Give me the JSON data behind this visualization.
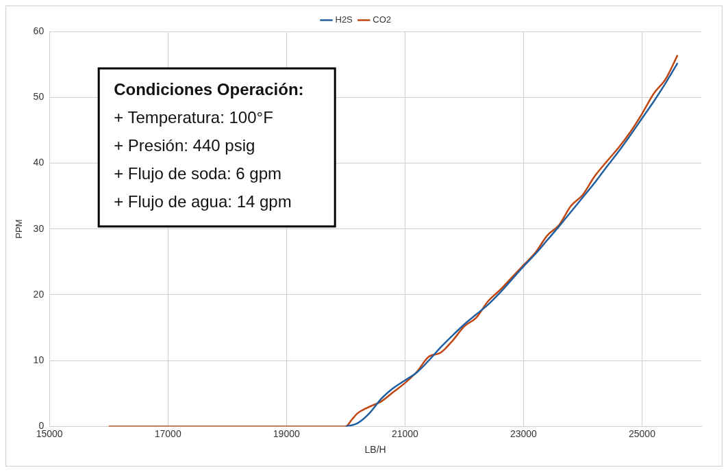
{
  "chart_data": {
    "type": "line",
    "xlabel": "LB/H",
    "ylabel": "PPM",
    "xlim": [
      15000,
      26000
    ],
    "xticks": [
      15000,
      17000,
      19000,
      21000,
      23000,
      25000
    ],
    "ylim": [
      0,
      60
    ],
    "yticks": [
      0,
      10,
      20,
      30,
      40,
      50,
      60
    ],
    "grid": true,
    "legend": "top",
    "marker": "none",
    "line_style": "solid",
    "annotations": [
      "Condiciones Operación:",
      "+ Temperatura: 100°F",
      "+ Presión: 440 psig",
      "+ Flujo de soda: 6 gpm",
      "+ Flujo de agua: 14 gpm"
    ],
    "series": [
      {
        "name": "H2S",
        "color": "#1f5f9f",
        "x": [
          20000,
          20200,
          20400,
          20600,
          20800,
          21000,
          21200,
          21400,
          21600,
          21800,
          22000,
          22200,
          22400,
          22600,
          22800,
          23000,
          23200,
          23400,
          23600,
          23800,
          24000,
          24200,
          24400,
          24600,
          24800,
          25000,
          25200,
          25400,
          25600
        ],
        "values": [
          0,
          0.5,
          2,
          4.2,
          5.8,
          7,
          8.2,
          10,
          12,
          13.8,
          15.5,
          17,
          18.5,
          20.3,
          22.3,
          24.3,
          26.2,
          28.3,
          30.4,
          32.6,
          34.8,
          37,
          39.4,
          41.7,
          44.2,
          46.8,
          49.4,
          52.2,
          55.2
        ]
      },
      {
        "name": "CO2",
        "color": "#c0450f",
        "x": [
          16000,
          20000,
          20100,
          20200,
          20400,
          20600,
          20800,
          21000,
          21200,
          21400,
          21600,
          21800,
          22000,
          22200,
          22400,
          22600,
          22800,
          23000,
          23200,
          23400,
          23600,
          23800,
          24000,
          24200,
          24400,
          24600,
          24800,
          25000,
          25200,
          25400,
          25600
        ],
        "values": [
          0,
          0,
          1,
          2,
          3,
          3.8,
          5.2,
          6.6,
          8.3,
          10.6,
          11.2,
          13,
          15.2,
          16.5,
          19,
          20.7,
          22.6,
          24.5,
          26.4,
          29,
          30.6,
          33.5,
          35.2,
          38,
          40.2,
          42.3,
          44.7,
          47.5,
          50.6,
          52.8,
          56.4
        ]
      }
    ]
  }
}
